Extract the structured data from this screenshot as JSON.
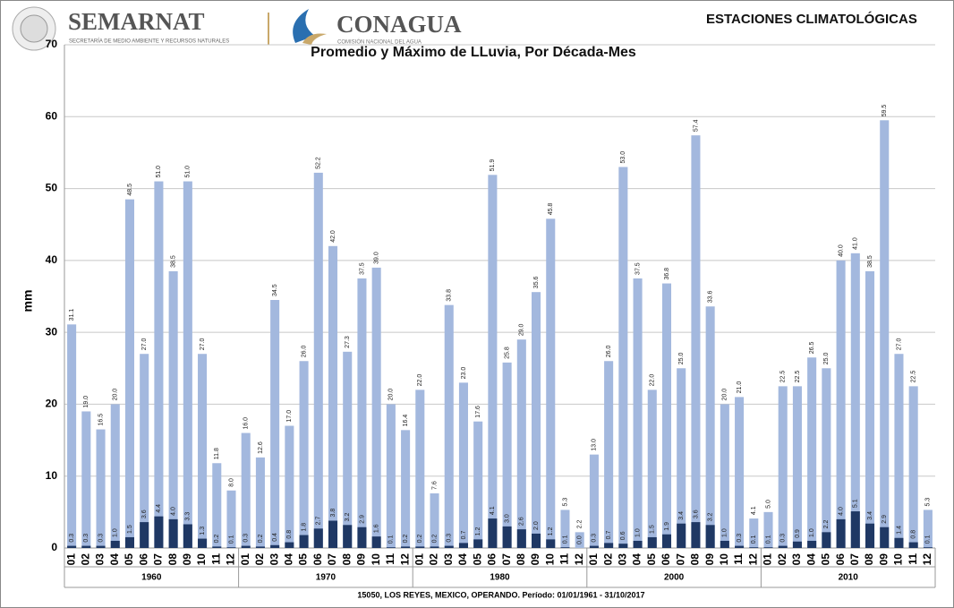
{
  "header": {
    "org1": "SEMARNAT",
    "org1_sub": "SECRETARÍA DE MEDIO AMBIENTE Y RECURSOS NATURALES",
    "org2": "CONAGUA",
    "org2_sub": "COMISIÓN NACIONAL DEL AGUA",
    "section": "ESTACIONES CLIMATOLÓGICAS"
  },
  "chart_data": {
    "type": "bar",
    "title": "Promedio y Máximo de LLuvia, Por Década-Mes",
    "y_label": "mm",
    "footer": "15050, LOS REYES, MEXICO, OPERANDO. Período: 01/01/1961 - 31/10/2017",
    "category_groups": [
      "1960",
      "1970",
      "1980",
      "2000",
      "2010"
    ],
    "categories": [
      "01",
      "02",
      "03",
      "04",
      "05",
      "06",
      "07",
      "08",
      "09",
      "10",
      "11",
      "12",
      "01",
      "02",
      "03",
      "04",
      "05",
      "06",
      "07",
      "08",
      "09",
      "10",
      "11",
      "12",
      "01",
      "02",
      "03",
      "04",
      "05",
      "06",
      "07",
      "08",
      "09",
      "10",
      "11",
      "12",
      "01",
      "02",
      "03",
      "04",
      "05",
      "06",
      "07",
      "08",
      "09",
      "10",
      "11",
      "12",
      "01",
      "02",
      "03",
      "04",
      "05",
      "06",
      "07",
      "08",
      "09",
      "10",
      "11",
      "12"
    ],
    "series": [
      {
        "color": "#a3b8de",
        "values": [
          31.1,
          19.0,
          16.5,
          20.0,
          48.5,
          27.0,
          51.0,
          38.5,
          51.0,
          27.0,
          11.8,
          8.0,
          16.0,
          12.6,
          34.5,
          17.0,
          26.0,
          52.2,
          42.0,
          27.3,
          37.5,
          39.0,
          20.0,
          16.4,
          22.0,
          7.6,
          33.8,
          23.0,
          17.6,
          51.9,
          25.8,
          29.0,
          35.6,
          45.8,
          5.3,
          2.2,
          13.0,
          26.0,
          53.0,
          37.5,
          22.0,
          36.8,
          25.0,
          57.4,
          33.6,
          20.0,
          21.0,
          4.1,
          5.0,
          22.5,
          22.5,
          26.5,
          25.0,
          40.0,
          41.0,
          38.5,
          59.5,
          27.0,
          22.5,
          5.3
        ],
        "value_labels": [
          "31.1",
          "19.0",
          "16.5",
          "20.0",
          "48.5",
          "27.0",
          "51.0",
          "38.5",
          "51.0",
          "27.0",
          "11.8",
          "8.0",
          "16.0",
          "12.6",
          "34.5",
          "17.0",
          "26.0",
          "52.2",
          "42.0",
          "27.3",
          "37.5",
          "39.0",
          "20.0",
          "16.4",
          "22.0",
          "7.6",
          "33.8",
          "23.0",
          "17.6",
          "51.9",
          "25.8",
          "29.0",
          "35.6",
          "45.8",
          "5.3",
          "2.2",
          "13.0",
          "26.0",
          "53.0",
          "37.5",
          "22.0",
          "36.8",
          "25.0",
          "57.4",
          "33.6",
          "20.0",
          "21.0",
          "4.1",
          "5.0",
          "22.5",
          "22.5",
          "26.5",
          "25.0",
          "40.0",
          "41.0",
          "38.5",
          "59.5",
          "27.0",
          "22.5",
          "5.3"
        ]
      },
      {
        "color": "#1f3864",
        "values": [
          0.3,
          0.3,
          0.3,
          1.0,
          1.5,
          3.6,
          4.4,
          4.0,
          3.3,
          1.3,
          0.2,
          0.1,
          0.3,
          0.2,
          0.4,
          0.8,
          1.8,
          2.7,
          3.8,
          3.2,
          2.9,
          1.6,
          0.1,
          0.2,
          0.2,
          0.2,
          0.3,
          0.7,
          1.2,
          4.1,
          3.0,
          2.6,
          2.0,
          1.2,
          0.1,
          0.0,
          0.3,
          0.7,
          0.6,
          1.0,
          1.5,
          1.9,
          3.4,
          3.6,
          3.2,
          1.0,
          0.3,
          0.1,
          0.1,
          0.3,
          0.9,
          1.0,
          2.2,
          4.0,
          5.1,
          3.4,
          2.9,
          1.4,
          0.8,
          0.1
        ],
        "value_labels": [
          "0.3",
          "0.3",
          "0.3",
          "1.0",
          "1.5",
          "3.6",
          "4.4",
          "4.0",
          "3.3",
          "1.3",
          "0.2",
          "0.1",
          "0.3",
          "0.2",
          "0.4",
          "0.8",
          "1.8",
          "2.7",
          "3.8",
          "3.2",
          "2.9",
          "1.6",
          "0.1",
          "0.2",
          "0.2",
          "0.2",
          "0.3",
          "0.7",
          "1.2",
          "4.1",
          "3.0",
          "2.6",
          "2.0",
          "1.2",
          "0.1",
          "0.0",
          "0.3",
          "0.7",
          "0.6",
          "1.0",
          "1.5",
          "1.9",
          "3.4",
          "3.6",
          "3.2",
          "1.0",
          "0.3",
          "0.1",
          "0.1",
          "0.3",
          "0.9",
          "1.0",
          "2.2",
          "4.0",
          "5.1",
          "3.4",
          "2.9",
          "1.4",
          "0.8",
          "0.1"
        ]
      }
    ],
    "ylim": [
      0,
      70
    ],
    "yticks": [
      0,
      10,
      20,
      30,
      40,
      50,
      60,
      70
    ],
    "grid": true
  }
}
